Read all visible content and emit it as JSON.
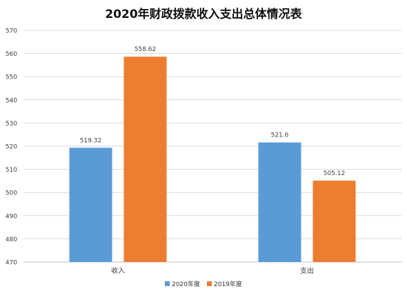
{
  "chart_data": {
    "type": "bar",
    "title": "2020年财政拨款收入支出总体情况表",
    "xlabel": "",
    "ylabel": "",
    "categories": [
      "收入",
      "支出"
    ],
    "series": [
      {
        "name": "2020年度",
        "values": [
          519.32,
          521.6
        ],
        "labels": [
          "519.32",
          "521.6"
        ],
        "color": "#5b9bd5"
      },
      {
        "name": "2019年度",
        "values": [
          558.62,
          505.12
        ],
        "labels": [
          "558.62",
          "505.12"
        ],
        "color": "#ed7d31"
      }
    ],
    "ylim": [
      470,
      570
    ],
    "yticks": [
      470,
      480,
      490,
      500,
      510,
      520,
      530,
      540,
      550,
      560,
      570
    ],
    "grid": true,
    "legend_position": "bottom"
  }
}
